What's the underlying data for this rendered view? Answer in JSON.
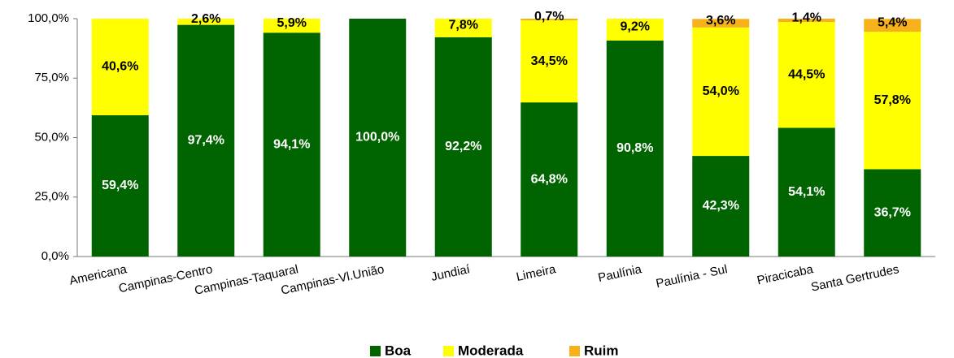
{
  "chart_data": {
    "type": "stacked_bar",
    "categories": [
      "Americana",
      "Campinas-Centro",
      "Campinas-Taquaral",
      "Campinas-Vl.União",
      "Jundiaí",
      "Limeira",
      "Paulínia",
      "Paulínia - Sul",
      "Piracicaba",
      "Santa Gertrudes"
    ],
    "series": [
      {
        "name": "Boa",
        "color": "#006400",
        "values": [
          59.4,
          97.4,
          94.1,
          100.0,
          92.2,
          64.8,
          90.8,
          42.3,
          54.1,
          36.7
        ],
        "value_labels": [
          "59,4%",
          "97,4%",
          "94,1%",
          "100,0%",
          "92,2%",
          "64,8%",
          "90,8%",
          "42,3%",
          "54,1%",
          "36,7%"
        ]
      },
      {
        "name": "Moderada",
        "color": "#ffff00",
        "values": [
          40.6,
          2.6,
          5.9,
          null,
          7.8,
          34.5,
          9.2,
          54.0,
          44.5,
          57.8
        ],
        "value_labels": [
          "40,6%",
          "2,6%",
          "5,9%",
          null,
          "7,8%",
          "34,5%",
          "9,2%",
          "54,0%",
          "44,5%",
          "57,8%"
        ]
      },
      {
        "name": "Ruim",
        "color": "#f7b21b",
        "values": [
          null,
          null,
          null,
          null,
          null,
          0.7,
          null,
          3.6,
          1.4,
          5.4
        ],
        "value_labels": [
          null,
          null,
          null,
          null,
          null,
          "0,7%",
          null,
          "3,6%",
          "1,4%",
          "5,4%"
        ]
      }
    ],
    "ylim": [
      0,
      100
    ],
    "yticks": [
      {
        "value": 0,
        "label": "0,0%"
      },
      {
        "value": 25,
        "label": "25,0%"
      },
      {
        "value": 50,
        "label": "50,0%"
      },
      {
        "value": 75,
        "label": "75,0%"
      },
      {
        "value": 100,
        "label": "100,0%"
      }
    ],
    "legend": "bottom"
  }
}
